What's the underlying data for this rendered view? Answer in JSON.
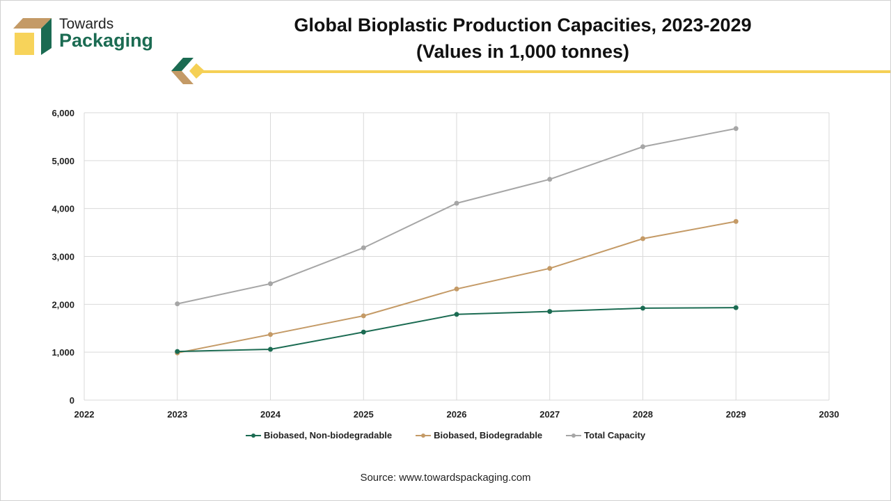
{
  "logo": {
    "line1": "Towards",
    "line2": "Packaging"
  },
  "title": {
    "line1": "Global Bioplastic Production Capacities, 2023-2029",
    "line2": "(Values in 1,000 tonnes)"
  },
  "source": "Source: www.towardspackaging.com",
  "chart_data": {
    "type": "line",
    "title": "Global Bioplastic Production Capacities, 2023-2029 (Values in 1,000 tonnes)",
    "x": [
      2023,
      2024,
      2025,
      2026,
      2027,
      2028,
      2029
    ],
    "xlim": [
      2022,
      2030
    ],
    "ylim": [
      0,
      6000
    ],
    "xticks": [
      "2022",
      "2023",
      "2024",
      "2025",
      "2026",
      "2027",
      "2028",
      "2029",
      "2030"
    ],
    "yticks": [
      "0",
      "1,000",
      "2,000",
      "3,000",
      "4,000",
      "5,000",
      "6,000"
    ],
    "xtick_values": [
      2022,
      2023,
      2024,
      2025,
      2026,
      2027,
      2028,
      2029,
      2030
    ],
    "ytick_values": [
      0,
      1000,
      2000,
      3000,
      4000,
      5000,
      6000
    ],
    "grid": true,
    "legend_position": "bottom",
    "series": [
      {
        "name": "Biobased, Non-biodegradable",
        "color": "#1b6b52",
        "values": [
          1015,
          1060,
          1420,
          1790,
          1850,
          1920,
          1930
        ]
      },
      {
        "name": "Biobased, Biodegradable",
        "color": "#c49a66",
        "values": [
          985,
          1370,
          1760,
          2320,
          2750,
          3370,
          3730
        ]
      },
      {
        "name": "Total Capacity",
        "color": "#a6a6a6",
        "values": [
          2010,
          2430,
          3180,
          4110,
          4610,
          5290,
          5670
        ]
      }
    ]
  }
}
